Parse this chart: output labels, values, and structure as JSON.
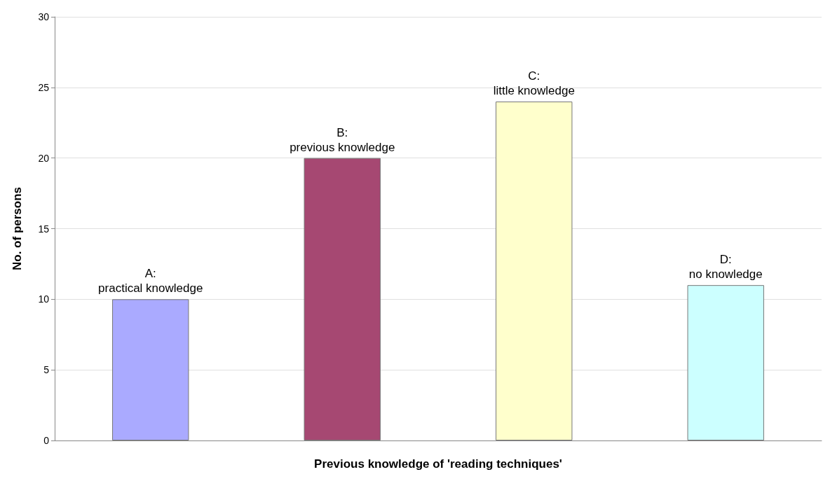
{
  "chart_data": {
    "type": "bar",
    "xlabel": "Previous knowledge of 'reading techniques'",
    "ylabel": "No. of persons",
    "categories": [
      "A:\npractical knowledge",
      "B:\nprevious knowledge",
      "C:\nlittle knowledge",
      "D:\nno knowledge"
    ],
    "values": [
      10,
      20,
      24,
      11
    ],
    "colors": [
      "#aaaaff",
      "#a64872",
      "#ffffcc",
      "#ccffff"
    ],
    "ylim": [
      0,
      30
    ],
    "yticks": [
      0,
      5,
      10,
      15,
      20,
      25,
      30
    ],
    "grid": "y",
    "tick_labels": "y"
  }
}
